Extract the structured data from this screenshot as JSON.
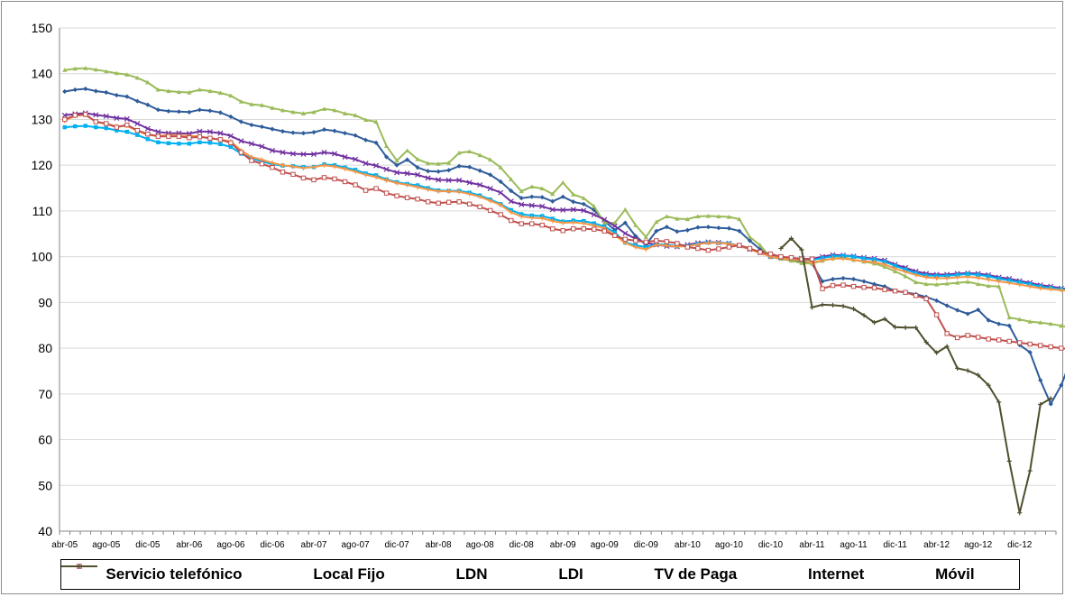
{
  "chart_data": {
    "type": "line",
    "title": "",
    "xlabel": "",
    "ylabel": "",
    "ylim": [
      40,
      150
    ],
    "yticks": [
      40,
      50,
      60,
      70,
      80,
      90,
      100,
      110,
      120,
      130,
      140,
      150
    ],
    "grid": "horizontal",
    "legend_position": "bottom",
    "x_start": "abr-05",
    "x_end": "mar-13",
    "x_tick_labels": [
      "abr-05",
      "ago-05",
      "dic-05",
      "abr-06",
      "ago-06",
      "dic-06",
      "abr-07",
      "ago-07",
      "dic-07",
      "abr-08",
      "ago-08",
      "dic-08",
      "abr-09",
      "ago-09",
      "dic-09",
      "abr-10",
      "ago-10",
      "dic-10",
      "abr-11",
      "ago-11",
      "dic-11",
      "abr-12",
      "ago-12",
      "dic-12"
    ],
    "series": [
      {
        "name": "Servicio telefónico",
        "color": "#2e5c9a",
        "marker": "diamond",
        "start_index": 0,
        "values": [
          136.1,
          136.5,
          136.7,
          136.2,
          135.9,
          135.3,
          135.0,
          134.0,
          133.2,
          132.1,
          131.8,
          131.7,
          131.6,
          132.1,
          131.9,
          131.5,
          130.6,
          129.5,
          128.8,
          128.4,
          127.9,
          127.4,
          127.1,
          127.0,
          127.2,
          127.8,
          127.5,
          127.0,
          126.5,
          125.5,
          124.9,
          121.8,
          120.0,
          121.2,
          119.5,
          118.7,
          118.6,
          118.9,
          119.8,
          119.6,
          118.8,
          117.9,
          116.4,
          114.4,
          112.8,
          113.1,
          113.0,
          112.1,
          113.1,
          112.0,
          111.5,
          110.2,
          107.8,
          105.8,
          107.4,
          104.5,
          102.6,
          105.6,
          106.5,
          105.5,
          105.8,
          106.4,
          106.5,
          106.3,
          106.2,
          105.6,
          103.5,
          101.6,
          100.0,
          99.7,
          99.2,
          98.8,
          98.5,
          94.6,
          95.1,
          95.3,
          95.1,
          94.6,
          94.0,
          93.5,
          92.5,
          92.2,
          91.8,
          91.2,
          90.4,
          89.3,
          88.3,
          87.5,
          88.4,
          86.1,
          85.3,
          84.9,
          80.7,
          79.1,
          73.0,
          67.8,
          71.9,
          77.8,
          78.2
        ]
      },
      {
        "name": "Local Fijo",
        "color": "#9bbb59",
        "marker": "triangle",
        "start_index": 0,
        "values": [
          140.8,
          141.1,
          141.2,
          140.9,
          140.5,
          140.1,
          139.8,
          139.1,
          138.1,
          136.5,
          136.2,
          136.0,
          135.9,
          136.5,
          136.2,
          135.8,
          135.2,
          133.9,
          133.3,
          133.1,
          132.5,
          132.0,
          131.6,
          131.3,
          131.6,
          132.3,
          132.0,
          131.3,
          130.9,
          129.9,
          129.5,
          124.2,
          121.0,
          123.2,
          121.3,
          120.4,
          120.3,
          120.5,
          122.7,
          123.0,
          122.2,
          121.2,
          119.5,
          116.9,
          114.3,
          115.3,
          114.9,
          113.7,
          116.2,
          113.6,
          112.8,
          111.0,
          107.4,
          107.4,
          110.3,
          106.9,
          104.3,
          107.6,
          108.8,
          108.3,
          108.2,
          108.8,
          108.9,
          108.8,
          108.7,
          108.2,
          104.3,
          102.5,
          99.9,
          99.5,
          99.1,
          98.6,
          98.5,
          99.1,
          99.6,
          99.9,
          99.3,
          98.9,
          98.5,
          97.8,
          96.8,
          95.7,
          94.4,
          94.0,
          93.9,
          94.1,
          94.3,
          94.5,
          94.0,
          93.6,
          93.5,
          86.7,
          86.3,
          85.8,
          85.6,
          85.3,
          84.9,
          84.4,
          84.2
        ]
      },
      {
        "name": "LDN",
        "color": "#7030a0",
        "marker": "x",
        "start_index": 0,
        "values": [
          130.9,
          131.2,
          131.4,
          131.0,
          130.7,
          130.3,
          130.1,
          129.1,
          128.0,
          127.3,
          127.0,
          127.0,
          126.9,
          127.4,
          127.3,
          127.0,
          126.4,
          125.3,
          124.7,
          124.1,
          123.2,
          122.8,
          122.5,
          122.4,
          122.4,
          122.8,
          122.5,
          121.8,
          121.3,
          120.4,
          119.9,
          119.1,
          118.4,
          118.2,
          117.9,
          117.2,
          116.8,
          116.7,
          116.7,
          116.2,
          115.7,
          114.9,
          114.0,
          112.1,
          111.4,
          111.2,
          111.0,
          110.3,
          110.2,
          110.3,
          110.1,
          109.2,
          108.1,
          106.7,
          105.1,
          103.9,
          103.0,
          102.6,
          102.3,
          102.2,
          102.6,
          103.0,
          103.2,
          103.1,
          102.9,
          102.4,
          101.6,
          100.9,
          100.1,
          99.9,
          99.7,
          99.6,
          99.5,
          100.0,
          100.4,
          100.3,
          100.1,
          99.8,
          99.6,
          99.2,
          98.3,
          97.6,
          96.8,
          96.3,
          96.1,
          96.1,
          96.3,
          96.4,
          96.3,
          96.0,
          95.5,
          95.2,
          94.7,
          94.3,
          93.8,
          93.5,
          93.1,
          92.8,
          92.5
        ]
      },
      {
        "name": "LDI",
        "color": "#00b0f0",
        "marker": "square",
        "start_index": 0,
        "values": [
          128.3,
          128.5,
          128.6,
          128.3,
          128.1,
          127.6,
          127.3,
          126.6,
          125.7,
          125.0,
          124.8,
          124.7,
          124.7,
          125.0,
          124.9,
          124.6,
          124.0,
          122.5,
          121.5,
          120.8,
          120.2,
          119.9,
          119.8,
          119.6,
          119.6,
          120.2,
          120.0,
          119.5,
          119.0,
          118.2,
          117.8,
          116.9,
          116.3,
          115.9,
          115.6,
          115.0,
          114.5,
          114.4,
          114.4,
          114.0,
          113.4,
          112.5,
          111.5,
          110.2,
          109.3,
          109.0,
          108.9,
          108.3,
          107.7,
          107.9,
          107.8,
          107.3,
          106.6,
          105.3,
          103.1,
          102.5,
          102.1,
          102.7,
          102.6,
          102.3,
          102.4,
          102.8,
          103.1,
          103.0,
          102.9,
          102.4,
          101.7,
          100.9,
          100.0,
          99.8,
          99.6,
          99.5,
          99.3,
          99.7,
          100.1,
          100.2,
          100.0,
          99.6,
          99.4,
          98.9,
          98.0,
          97.2,
          96.4,
          95.9,
          95.8,
          95.8,
          96.0,
          96.2,
          96.0,
          95.7,
          95.2,
          94.8,
          94.4,
          94.0,
          93.5,
          93.2,
          92.9,
          92.6,
          92.1
        ]
      },
      {
        "name": "TV de Paga",
        "color": "#f79646",
        "marker": "plus",
        "start_index": 0,
        "values": [
          129.7,
          130.8,
          131.0,
          129.5,
          129.0,
          128.5,
          128.6,
          127.5,
          126.6,
          126.4,
          126.6,
          126.5,
          126.4,
          126.3,
          125.9,
          125.6,
          125.2,
          123.2,
          121.8,
          121.2,
          120.5,
          120.0,
          119.7,
          119.4,
          119.6,
          120.0,
          119.7,
          119.2,
          118.6,
          117.9,
          117.4,
          116.7,
          116.1,
          115.7,
          115.2,
          114.7,
          114.3,
          114.3,
          114.2,
          113.7,
          113.1,
          112.2,
          111.3,
          109.7,
          108.8,
          108.5,
          108.4,
          107.8,
          107.4,
          107.5,
          107.3,
          106.8,
          106.2,
          104.7,
          103.0,
          102.1,
          101.6,
          102.6,
          102.4,
          102.2,
          102.3,
          102.7,
          103.0,
          103.0,
          102.8,
          102.4,
          101.6,
          100.8,
          100.0,
          99.7,
          99.4,
          99.3,
          98.7,
          99.2,
          99.6,
          99.6,
          99.3,
          99.0,
          98.8,
          98.3,
          97.4,
          96.7,
          96.0,
          95.5,
          95.3,
          95.3,
          95.5,
          95.6,
          95.4,
          95.0,
          94.6,
          94.3,
          93.9,
          93.5,
          93.1,
          92.9,
          92.7,
          92.5,
          92.6
        ]
      },
      {
        "name": "Internet",
        "color": "#c0504d",
        "marker": "square-open",
        "start_index": 0,
        "values": [
          130.0,
          130.9,
          131.1,
          129.5,
          129.1,
          128.3,
          128.8,
          127.6,
          126.8,
          126.3,
          126.3,
          126.3,
          126.0,
          126.2,
          125.9,
          125.6,
          124.9,
          122.8,
          121.0,
          120.3,
          119.5,
          118.5,
          118.0,
          117.2,
          116.8,
          117.3,
          117.0,
          116.4,
          115.7,
          114.5,
          114.9,
          113.9,
          113.3,
          112.9,
          112.6,
          112.0,
          111.7,
          111.9,
          112.0,
          111.5,
          110.9,
          110.1,
          109.2,
          107.9,
          107.2,
          107.2,
          106.9,
          106.1,
          105.7,
          106.1,
          106.1,
          106.0,
          105.6,
          104.6,
          103.8,
          103.5,
          103.2,
          103.5,
          103.3,
          102.9,
          102.1,
          101.8,
          101.4,
          101.7,
          102.1,
          102.5,
          101.8,
          101.0,
          100.6,
          100.0,
          99.8,
          99.5,
          99.5,
          93.0,
          93.7,
          93.8,
          93.5,
          93.3,
          93.2,
          92.8,
          92.5,
          92.2,
          91.5,
          90.8,
          87.3,
          83.2,
          82.3,
          82.8,
          82.4,
          82.0,
          81.8,
          81.5,
          81.2,
          80.9,
          80.6,
          80.3,
          80.0,
          79.7,
          79.3,
          79.0
        ]
      },
      {
        "name": "Móvil",
        "color": "#4f4f2f",
        "marker": "plus",
        "start_index": 69,
        "values": [
          101.8,
          104.0,
          101.5,
          88.9,
          89.5,
          89.4,
          89.2,
          88.6,
          87.2,
          85.6,
          86.4,
          84.6,
          84.5,
          84.5,
          81.3,
          79.0,
          80.4,
          75.6,
          75.1,
          74.1,
          71.9,
          68.2,
          55.3,
          44.0,
          53.2,
          67.7,
          69.0
        ]
      }
    ]
  }
}
